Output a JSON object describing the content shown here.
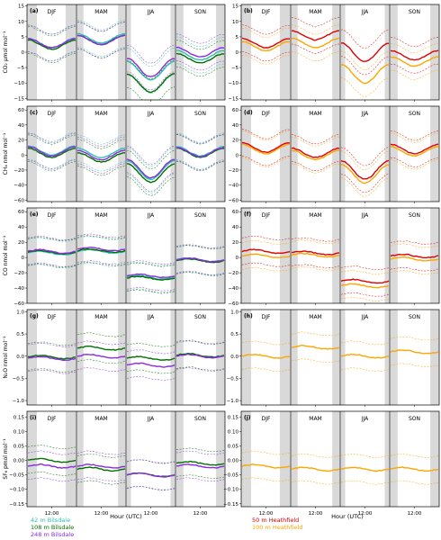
{
  "chart_data": {
    "type": "line",
    "x_unit": "Hour (UTC)",
    "xlabel": "Hour (UTC)",
    "x_tick_label": "12:00",
    "seasons": [
      "DJF",
      "MAM",
      "JJA",
      "SON"
    ],
    "shaded_night_hours": "grey bands mark night-time hours in each season",
    "columns": [
      {
        "side": "left",
        "series": [
          {
            "name": "42 m Bilsdale",
            "color": "#30c0b0",
            "style": "mean + dashed bounds"
          },
          {
            "name": "108 m Bilsdale",
            "color": "#007000",
            "style": "mean + dotted bounds"
          },
          {
            "name": "248 m Bilsdale",
            "color": "#8a2be2",
            "style": "mean + dotted bounds"
          }
        ]
      },
      {
        "side": "right",
        "series": [
          {
            "name": "50 m Heathfield",
            "color": "#e00000",
            "style": "mean + dashed bounds"
          },
          {
            "name": "100 m Heathfield",
            "color": "#ffa500",
            "style": "mean + dashed bounds"
          }
        ]
      }
    ],
    "rows": [
      {
        "ylabel": "CO₂ μmol mol⁻¹",
        "ylim": [
          -15.5,
          15.5
        ],
        "yticks": [
          -15,
          -10,
          -5,
          0,
          5,
          10,
          15
        ],
        "panels": [
          {
            "label": "(a)",
            "means": {
              "42 m Bilsdale": [
                3,
                4.5,
                -6,
                -1
              ],
              "108 m Bilsdale": [
                2.5,
                4,
                -10,
                -2
              ],
              "248 m Bilsdale": [
                3,
                4,
                -5,
                0
              ]
            }
          },
          {
            "label": "(b)",
            "means": {
              "50 m Heathfield": [
                3,
                5.5,
                0,
                -1
              ],
              "100 m Heathfield": [
                2,
                3,
                -7,
                -3
              ]
            }
          }
        ]
      },
      {
        "ylabel": "CH₄ nmol mol⁻¹",
        "ylim": [
          -62,
          65
        ],
        "yticks": [
          -60,
          -40,
          -20,
          0,
          20,
          40,
          60
        ],
        "panels": [
          {
            "label": "(c)",
            "means": {
              "42 m Bilsdale": [
                6,
                3,
                -20,
                5
              ],
              "108 m Bilsdale": [
                3,
                -3,
                -24,
                3
              ],
              "248 m Bilsdale": [
                5,
                0,
                -18,
                4
              ]
            }
          },
          {
            "label": "(d)",
            "means": {
              "50 m Heathfield": [
                10,
                3,
                -20,
                8
              ],
              "100 m Heathfield": [
                8,
                0,
                -25,
                5
              ]
            }
          }
        ]
      },
      {
        "ylabel": "CO nmol mol⁻¹",
        "ylim": [
          -60,
          65
        ],
        "yticks": [
          -60,
          -40,
          -20,
          0,
          20,
          40,
          60
        ],
        "panels": [
          {
            "label": "(e)",
            "means": {
              "42 m Bilsdale": [
                6,
                8,
                -26,
                -3
              ],
              "108 m Bilsdale": [
                7,
                9,
                -27,
                -4
              ],
              "248 m Bilsdale": [
                8,
                11,
                -24,
                -3
              ]
            }
          },
          {
            "label": "(f)",
            "means": {
              "50 m Heathfield": [
                8,
                6,
                -31,
                2
              ],
              "100 m Heathfield": [
                2,
                3,
                -37,
                -2
              ]
            }
          }
        ]
      },
      {
        "ylabel": "N₂O nmol mol⁻¹",
        "ylim": [
          -1.1,
          1.05
        ],
        "yticks": [
          -1.0,
          -0.5,
          0.0,
          0.5,
          1.0
        ],
        "panels": [
          {
            "label": "(g)",
            "means": {
              "108 m Bilsdale": [
                -0.02,
                0.18,
                -0.05,
                0.02
              ],
              "248 m Bilsdale": [
                -0.05,
                0.0,
                -0.2,
                0.0
              ]
            }
          },
          {
            "label": "(h)",
            "means": {
              "100 m Heathfield": [
                0.0,
                0.2,
                0.0,
                0.1
              ]
            }
          }
        ]
      },
      {
        "ylabel": "SF₆ pmol mol⁻¹",
        "ylim": [
          -0.16,
          0.17
        ],
        "yticks": [
          -0.15,
          -0.1,
          -0.05,
          0.0,
          0.05,
          0.1,
          0.15
        ],
        "panels": [
          {
            "label": "(i)",
            "means": {
              "108 m Bilsdale": [
                0.0,
                -0.03,
                -0.05,
                -0.01
              ],
              "248 m Bilsdale": [
                -0.02,
                -0.02,
                -0.05,
                -0.02
              ]
            }
          },
          {
            "label": "(j)",
            "means": {
              "100 m Heathfield": [
                -0.02,
                -0.03,
                -0.03,
                -0.03
              ]
            }
          }
        ]
      }
    ],
    "ytick_labels": [
      [
        "−15",
        "−10",
        "−5",
        "0",
        "5",
        "10",
        "15"
      ],
      [
        "−60",
        "−40",
        "−20",
        "0",
        "20",
        "40",
        "60"
      ],
      [
        "−60",
        "−40",
        "−20",
        "0",
        "20",
        "40",
        "60"
      ],
      [
        "−1.0",
        "−0.5",
        "0.0",
        "0.5",
        "1.0"
      ],
      [
        "−0.15",
        "−0.10",
        "−0.05",
        "0.00",
        "0.05",
        "0.10",
        "0.15"
      ]
    ]
  },
  "legend": {
    "left": [
      {
        "label": "42 m Bilsdale",
        "color": "#30c0b0"
      },
      {
        "label": "108 m Bilsdale",
        "color": "#007000"
      },
      {
        "label": "248 m Bilsdale",
        "color": "#8a2be2"
      }
    ],
    "right": [
      {
        "label": "50 m Heathfield",
        "color": "#e00000"
      },
      {
        "label": "100 m Heathfield",
        "color": "#ffa500"
      }
    ]
  }
}
